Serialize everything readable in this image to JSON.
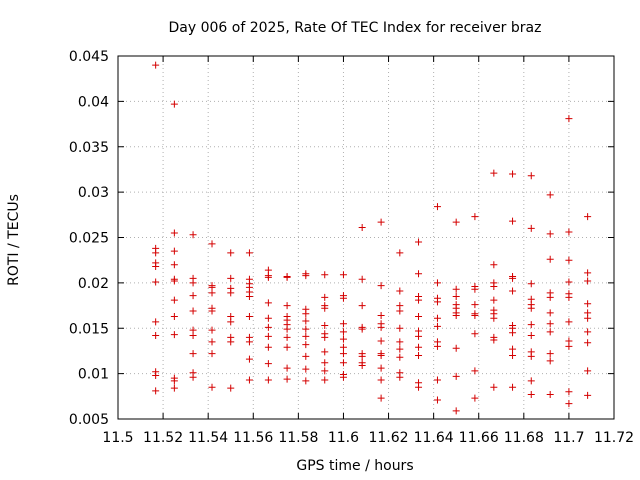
{
  "chart_data": {
    "type": "scatter",
    "title": "Day 006 of 2025, Rate Of TEC Index for receiver braz",
    "xlabel": "GPS time / hours",
    "ylabel": "ROTI / TECUs",
    "xlim": [
      11.5,
      11.72
    ],
    "ylim": [
      0.005,
      0.045
    ],
    "grid": true,
    "marker": "+",
    "color": "#d40000",
    "xticks": [
      11.5,
      11.52,
      11.54,
      11.56,
      11.58,
      11.6,
      11.62,
      11.64,
      11.66,
      11.68,
      11.7,
      11.72
    ],
    "xtick_labels": [
      "11.5",
      "11.52",
      "11.54",
      "11.56",
      "11.58",
      "11.6",
      "11.62",
      "11.64",
      "11.66",
      "11.68",
      "11.7",
      "11.72"
    ],
    "yticks": [
      0.005,
      0.01,
      0.015,
      0.02,
      0.025,
      0.03,
      0.035,
      0.04,
      0.045
    ],
    "ytick_labels": [
      "0.005",
      "0.01",
      "0.015",
      "0.02",
      "0.025",
      "0.03",
      "0.035",
      "0.04",
      "0.045"
    ],
    "columns": [
      {
        "x": 11.5167,
        "y": [
          0.044,
          0.0238,
          0.0233,
          0.0222,
          0.0218,
          0.0201,
          0.0157,
          0.0142,
          0.0102,
          0.0098,
          0.0081
        ]
      },
      {
        "x": 11.525,
        "y": [
          0.0397,
          0.0255,
          0.0235,
          0.022,
          0.0204,
          0.0202,
          0.0181,
          0.0163,
          0.0143,
          0.0095,
          0.0092,
          0.0084
        ]
      },
      {
        "x": 11.5333,
        "y": [
          0.0253,
          0.0205,
          0.02,
          0.0186,
          0.0169,
          0.0148,
          0.0142,
          0.0122,
          0.0101,
          0.0096
        ]
      },
      {
        "x": 11.5417,
        "y": [
          0.0243,
          0.0197,
          0.0195,
          0.0189,
          0.0172,
          0.0169,
          0.0148,
          0.0135,
          0.0122,
          0.0085
        ]
      },
      {
        "x": 11.55,
        "y": [
          0.0233,
          0.0205,
          0.0194,
          0.0189,
          0.0163,
          0.0157,
          0.014,
          0.0135,
          0.0084
        ]
      },
      {
        "x": 11.5583,
        "y": [
          0.0233,
          0.0204,
          0.0199,
          0.0195,
          0.019,
          0.0185,
          0.0163,
          0.014,
          0.0135,
          0.0116,
          0.0093
        ]
      },
      {
        "x": 11.5667,
        "y": [
          0.0214,
          0.0208,
          0.0206,
          0.0178,
          0.0161,
          0.0151,
          0.0141,
          0.0129,
          0.0111,
          0.0093
        ]
      },
      {
        "x": 11.575,
        "y": [
          0.0207,
          0.0206,
          0.0175,
          0.0163,
          0.0159,
          0.0154,
          0.0149,
          0.014,
          0.0129,
          0.0106,
          0.0094
        ]
      },
      {
        "x": 11.5833,
        "y": [
          0.021,
          0.0208,
          0.0171,
          0.0166,
          0.0158,
          0.0149,
          0.0141,
          0.0132,
          0.0119,
          0.0105,
          0.0092
        ]
      },
      {
        "x": 11.5917,
        "y": [
          0.0209,
          0.0184,
          0.0175,
          0.0172,
          0.0153,
          0.0144,
          0.014,
          0.0124,
          0.0112,
          0.0103,
          0.0093
        ]
      },
      {
        "x": 11.6,
        "y": [
          0.0209,
          0.0186,
          0.0183,
          0.0155,
          0.0146,
          0.0138,
          0.0129,
          0.0122,
          0.0112,
          0.0099,
          0.0096
        ]
      },
      {
        "x": 11.6083,
        "y": [
          0.0261,
          0.0204,
          0.0175,
          0.0151,
          0.0149,
          0.0122,
          0.0119,
          0.0112,
          0.0109
        ]
      },
      {
        "x": 11.6167,
        "y": [
          0.0267,
          0.0197,
          0.0164,
          0.0155,
          0.0151,
          0.0136,
          0.0122,
          0.012,
          0.0106,
          0.0093,
          0.0073
        ]
      },
      {
        "x": 11.625,
        "y": [
          0.0233,
          0.0191,
          0.0175,
          0.0169,
          0.015,
          0.0135,
          0.0127,
          0.0118,
          0.0101,
          0.0096
        ]
      },
      {
        "x": 11.6333,
        "y": [
          0.0245,
          0.021,
          0.0185,
          0.0181,
          0.0163,
          0.0147,
          0.0141,
          0.0129,
          0.012,
          0.009,
          0.0085
        ]
      },
      {
        "x": 11.6417,
        "y": [
          0.0284,
          0.02,
          0.0183,
          0.0179,
          0.0161,
          0.0152,
          0.0135,
          0.013,
          0.0093,
          0.0071
        ]
      },
      {
        "x": 11.65,
        "y": [
          0.0267,
          0.0193,
          0.0185,
          0.0176,
          0.0172,
          0.0167,
          0.0164,
          0.0128,
          0.0097,
          0.0059
        ]
      },
      {
        "x": 11.6583,
        "y": [
          0.0273,
          0.0196,
          0.0193,
          0.0176,
          0.0166,
          0.0164,
          0.0144,
          0.0103,
          0.0073
        ]
      },
      {
        "x": 11.6667,
        "y": [
          0.0321,
          0.022,
          0.02,
          0.0196,
          0.0181,
          0.017,
          0.0166,
          0.0161,
          0.014,
          0.0137,
          0.0085
        ]
      },
      {
        "x": 11.675,
        "y": [
          0.032,
          0.0268,
          0.0207,
          0.0205,
          0.0191,
          0.0153,
          0.015,
          0.0145,
          0.0127,
          0.012,
          0.0085
        ]
      },
      {
        "x": 11.6833,
        "y": [
          0.0318,
          0.026,
          0.0199,
          0.0182,
          0.0176,
          0.0172,
          0.0154,
          0.0142,
          0.0124,
          0.0119,
          0.0092,
          0.0077
        ]
      },
      {
        "x": 11.6917,
        "y": [
          0.0297,
          0.0254,
          0.0226,
          0.0189,
          0.0184,
          0.0167,
          0.0155,
          0.0146,
          0.0122,
          0.0114,
          0.0077
        ]
      },
      {
        "x": 11.7,
        "y": [
          0.0381,
          0.0256,
          0.0225,
          0.0201,
          0.0188,
          0.0184,
          0.0157,
          0.0136,
          0.013,
          0.008,
          0.0067
        ]
      },
      {
        "x": 11.7083,
        "y": [
          0.0273,
          0.0211,
          0.0202,
          0.0177,
          0.0167,
          0.0161,
          0.0146,
          0.0134,
          0.0103,
          0.0076
        ]
      }
    ]
  }
}
